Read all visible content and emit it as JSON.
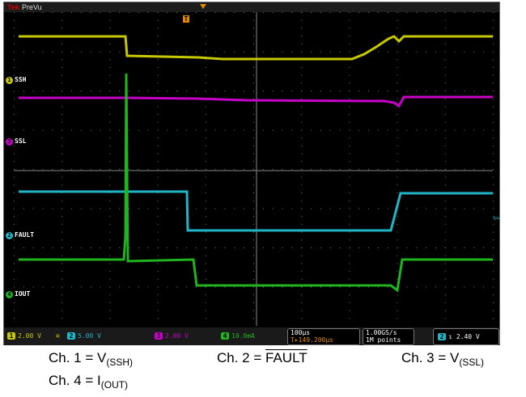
{
  "scope": {
    "brand": "Tek",
    "run_state": "PreVu",
    "trigger_marker": "T",
    "channels": [
      {
        "id": "1",
        "label": "SSH",
        "color": "#c8c800"
      },
      {
        "id": "3",
        "label": "SSL",
        "color": "#c800c8"
      },
      {
        "id": "2",
        "label": "FAULT",
        "color": "#1fb6c8"
      },
      {
        "id": "4",
        "label": "IOUT",
        "color": "#1eb51e"
      }
    ],
    "status": {
      "ch1_scale": "2.00 V",
      "ch2_scale": "5.00 V",
      "ch3_scale": "2.00 V",
      "ch4_scale": "10.0mA",
      "timebase": "100µs",
      "trigger_offset": "149.200µs",
      "sample_rate": "1.00GS/s",
      "record_length": "1M points",
      "trigger_channel": "2",
      "trigger_level": "2.40 V"
    },
    "colors": {
      "ch1": "#c8c800",
      "ch2": "#1fb6c8",
      "ch3": "#c800c8",
      "ch4": "#1eb51e",
      "trigger": "#e08a00"
    }
  },
  "captions": {
    "c1": "Ch. 1 = V",
    "c1_sub": "(SSH)",
    "c2": "Ch. 2 = ",
    "c2_over": "FAULT",
    "c3": "Ch. 3 = V",
    "c3_sub": "(SSL)",
    "c4": "Ch. 4 = I",
    "c4_sub": "(OUT)"
  }
}
